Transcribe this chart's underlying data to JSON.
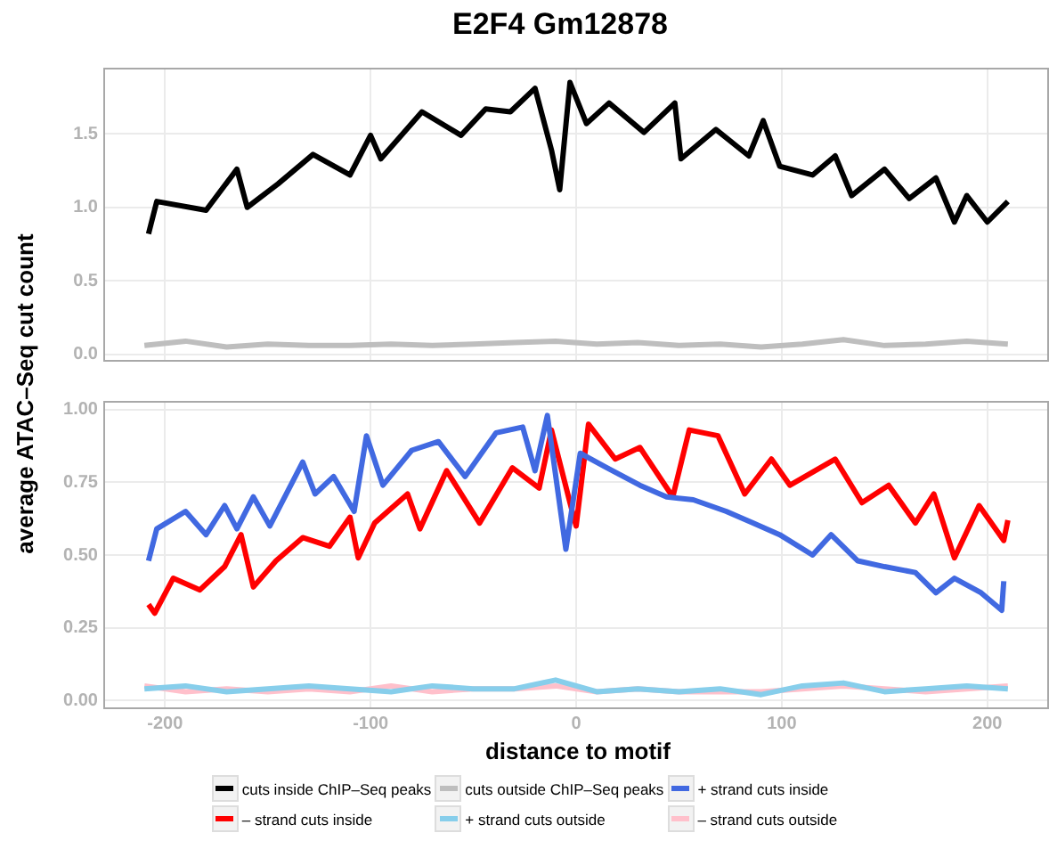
{
  "chart_data": [
    {
      "type": "line",
      "title": "E2F4 Gm12878",
      "ylabel": "average ATAC–Seq cut count",
      "xlim": [
        -230,
        230
      ],
      "xticks": [
        -200,
        -100,
        0,
        100,
        200
      ],
      "ylim": [
        -0.05,
        1.95
      ],
      "yticks": [
        {
          "value": 0,
          "label": "0.0"
        },
        {
          "value": 0.5,
          "label": "0.5"
        },
        {
          "value": 1,
          "label": "1.0"
        },
        {
          "value": 1.5,
          "label": "1.5"
        }
      ],
      "grid": true,
      "legend": "bottom",
      "tick_labels": "y",
      "series": [
        {
          "name": "cuts inside ChIP–Seq peaks",
          "color": "#000000",
          "x": [
            -208,
            -204,
            -180,
            -165,
            -160,
            -145,
            -128,
            -110,
            -100,
            -95,
            -75,
            -56,
            -44,
            -32,
            -20,
            -12,
            -8,
            -3,
            5,
            16,
            33,
            48,
            51,
            68,
            84,
            91,
            99,
            115,
            126,
            134,
            150,
            162,
            175,
            184,
            190,
            200,
            210
          ],
          "values": [
            0.82,
            1.04,
            0.98,
            1.26,
            1.0,
            1.16,
            1.36,
            1.22,
            1.49,
            1.33,
            1.65,
            1.49,
            1.67,
            1.65,
            1.81,
            1.39,
            1.12,
            1.85,
            1.57,
            1.71,
            1.51,
            1.71,
            1.33,
            1.53,
            1.35,
            1.59,
            1.28,
            1.22,
            1.35,
            1.08,
            1.26,
            1.06,
            1.2,
            0.9,
            1.08,
            0.9,
            1.04
          ]
        },
        {
          "name": "cuts outside ChIP–Seq peaks",
          "color": "#bebebe",
          "x": [
            -210,
            -190,
            -170,
            -150,
            -130,
            -110,
            -90,
            -70,
            -50,
            -30,
            -10,
            10,
            30,
            50,
            70,
            90,
            110,
            130,
            150,
            170,
            190,
            210
          ],
          "values": [
            0.06,
            0.09,
            0.05,
            0.07,
            0.06,
            0.06,
            0.07,
            0.06,
            0.07,
            0.08,
            0.09,
            0.07,
            0.08,
            0.06,
            0.07,
            0.05,
            0.07,
            0.1,
            0.06,
            0.07,
            0.09,
            0.07
          ]
        }
      ]
    },
    {
      "type": "line",
      "xlabel": "distance to motif",
      "xlim": [
        -230,
        230
      ],
      "xticks": [
        -200,
        -100,
        0,
        100,
        200
      ],
      "ylim": [
        -0.03,
        1.03
      ],
      "yticks": [
        {
          "value": 0,
          "label": "0.00"
        },
        {
          "value": 0.25,
          "label": "0.25"
        },
        {
          "value": 0.5,
          "label": "0.50"
        },
        {
          "value": 0.75,
          "label": "0.75"
        },
        {
          "value": 1,
          "label": "1.00"
        }
      ],
      "grid": true,
      "legend": "bottom",
      "series": [
        {
          "name": "+ strand cuts inside",
          "color": "#4169e1",
          "x": [
            -208,
            -204,
            -190,
            -180,
            -171,
            -165,
            -157,
            -149,
            -133,
            -127,
            -118,
            -108,
            -102,
            -94,
            -80,
            -67,
            -54,
            -39,
            -26,
            -20,
            -14,
            -5,
            2,
            15,
            31,
            44,
            57,
            73,
            86,
            99,
            115,
            124,
            137,
            150,
            165,
            175,
            184,
            197,
            207,
            208
          ],
          "values": [
            0.48,
            0.59,
            0.65,
            0.57,
            0.67,
            0.59,
            0.7,
            0.6,
            0.82,
            0.71,
            0.77,
            0.65,
            0.91,
            0.74,
            0.86,
            0.89,
            0.77,
            0.92,
            0.94,
            0.79,
            0.98,
            0.52,
            0.85,
            0.8,
            0.74,
            0.7,
            0.69,
            0.65,
            0.61,
            0.57,
            0.5,
            0.57,
            0.48,
            0.46,
            0.44,
            0.37,
            0.42,
            0.37,
            0.31,
            0.41
          ]
        },
        {
          "name": "– strand cuts inside",
          "color": "#ff0000",
          "x": [
            -208,
            -205,
            -196,
            -183,
            -171,
            -163,
            -157,
            -146,
            -133,
            -120,
            -110,
            -106,
            -98,
            -82,
            -76,
            -63,
            -47,
            -31,
            -18,
            -12,
            -3,
            0,
            6,
            19,
            31,
            47,
            55,
            69,
            82,
            95,
            104,
            126,
            139,
            152,
            165,
            174,
            184,
            196,
            208,
            210
          ],
          "values": [
            0.33,
            0.3,
            0.42,
            0.38,
            0.46,
            0.57,
            0.39,
            0.48,
            0.56,
            0.53,
            0.63,
            0.49,
            0.61,
            0.71,
            0.59,
            0.79,
            0.61,
            0.8,
            0.73,
            0.93,
            0.68,
            0.6,
            0.95,
            0.83,
            0.87,
            0.7,
            0.93,
            0.91,
            0.71,
            0.83,
            0.74,
            0.83,
            0.68,
            0.74,
            0.61,
            0.71,
            0.49,
            0.67,
            0.55,
            0.62
          ]
        },
        {
          "name": "+ strand cuts outside",
          "color": "#87ceeb",
          "x": [
            -210,
            -190,
            -170,
            -150,
            -130,
            -110,
            -90,
            -70,
            -50,
            -30,
            -10,
            10,
            30,
            50,
            70,
            90,
            110,
            130,
            150,
            170,
            190,
            210
          ],
          "values": [
            0.04,
            0.05,
            0.03,
            0.04,
            0.05,
            0.04,
            0.03,
            0.05,
            0.04,
            0.04,
            0.07,
            0.03,
            0.04,
            0.03,
            0.04,
            0.02,
            0.05,
            0.06,
            0.03,
            0.04,
            0.05,
            0.04
          ]
        },
        {
          "name": "– strand cuts outside",
          "color": "#ffc0cb",
          "x": [
            -210,
            -190,
            -170,
            -150,
            -130,
            -110,
            -90,
            -70,
            -50,
            -30,
            -10,
            10,
            30,
            50,
            70,
            90,
            110,
            130,
            150,
            170,
            190,
            210
          ],
          "values": [
            0.05,
            0.03,
            0.04,
            0.03,
            0.04,
            0.03,
            0.05,
            0.03,
            0.04,
            0.04,
            0.05,
            0.03,
            0.04,
            0.03,
            0.03,
            0.03,
            0.04,
            0.05,
            0.04,
            0.03,
            0.04,
            0.05
          ]
        }
      ]
    }
  ]
}
